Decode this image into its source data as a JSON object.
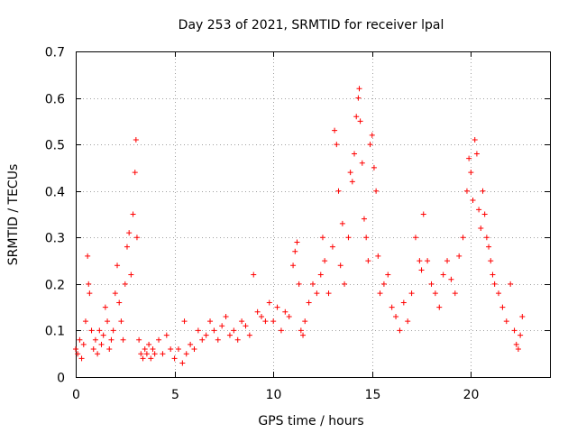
{
  "chart_data": {
    "type": "scatter",
    "title": "Day 253 of 2021, SRMTID for receiver lpal",
    "xlabel": "GPS time / hours",
    "ylabel": "SRMTID / TECUs",
    "xlim": [
      0,
      24
    ],
    "ylim": [
      0,
      0.7
    ],
    "xticks": [
      0,
      5,
      10,
      15,
      20
    ],
    "yticks": [
      0,
      0.1,
      0.2,
      0.3,
      0.4,
      0.5,
      0.6,
      0.7
    ],
    "xtick_labels": [
      "0",
      "5",
      "10",
      "15",
      "20"
    ],
    "ytick_labels": [
      "0",
      "0.1",
      "0.2",
      "0.3",
      "0.4",
      "0.5",
      "0.6",
      "0.7"
    ],
    "grid": true,
    "marker": "+",
    "color": "#ff0000",
    "series": [
      {
        "name": "SRMTID",
        "x": [
          0.0,
          0.1,
          0.2,
          0.3,
          0.4,
          0.5,
          0.6,
          0.65,
          0.7,
          0.8,
          0.9,
          1.0,
          1.1,
          1.2,
          1.3,
          1.4,
          1.5,
          1.6,
          1.7,
          1.8,
          1.9,
          2.0,
          2.1,
          2.2,
          2.3,
          2.4,
          2.5,
          2.6,
          2.7,
          2.8,
          2.9,
          3.0,
          3.05,
          3.1,
          3.2,
          3.3,
          3.4,
          3.5,
          3.6,
          3.7,
          3.8,
          3.9,
          4.0,
          4.2,
          4.4,
          4.6,
          4.8,
          5.0,
          5.2,
          5.4,
          5.5,
          5.6,
          5.8,
          6.0,
          6.2,
          6.4,
          6.6,
          6.8,
          7.0,
          7.2,
          7.4,
          7.6,
          7.8,
          8.0,
          8.2,
          8.4,
          8.6,
          8.8,
          9.0,
          9.2,
          9.4,
          9.6,
          9.8,
          10.0,
          10.2,
          10.4,
          10.6,
          10.8,
          11.0,
          11.1,
          11.2,
          11.3,
          11.4,
          11.5,
          11.6,
          11.8,
          12.0,
          12.2,
          12.4,
          12.5,
          12.6,
          12.8,
          13.0,
          13.1,
          13.2,
          13.3,
          13.4,
          13.5,
          13.6,
          13.8,
          13.9,
          14.0,
          14.1,
          14.2,
          14.3,
          14.35,
          14.4,
          14.5,
          14.6,
          14.7,
          14.8,
          14.9,
          15.0,
          15.1,
          15.2,
          15.3,
          15.4,
          15.6,
          15.8,
          16.0,
          16.2,
          16.4,
          16.6,
          16.8,
          17.0,
          17.2,
          17.4,
          17.5,
          17.6,
          17.8,
          18.0,
          18.2,
          18.4,
          18.6,
          18.8,
          19.0,
          19.2,
          19.4,
          19.6,
          19.8,
          19.9,
          20.0,
          20.1,
          20.2,
          20.3,
          20.4,
          20.5,
          20.6,
          20.7,
          20.8,
          20.9,
          21.0,
          21.1,
          21.2,
          21.4,
          21.6,
          21.8,
          22.0,
          22.2,
          22.3,
          22.4,
          22.5,
          22.6
        ],
        "y": [
          0.06,
          0.05,
          0.08,
          0.04,
          0.07,
          0.12,
          0.26,
          0.2,
          0.18,
          0.1,
          0.06,
          0.08,
          0.05,
          0.1,
          0.07,
          0.09,
          0.15,
          0.12,
          0.06,
          0.08,
          0.1,
          0.18,
          0.24,
          0.16,
          0.12,
          0.08,
          0.2,
          0.28,
          0.31,
          0.22,
          0.35,
          0.44,
          0.51,
          0.3,
          0.08,
          0.05,
          0.04,
          0.06,
          0.05,
          0.07,
          0.04,
          0.06,
          0.05,
          0.08,
          0.05,
          0.09,
          0.06,
          0.04,
          0.06,
          0.03,
          0.12,
          0.05,
          0.07,
          0.06,
          0.1,
          0.08,
          0.09,
          0.12,
          0.1,
          0.08,
          0.11,
          0.13,
          0.09,
          0.1,
          0.08,
          0.12,
          0.11,
          0.09,
          0.22,
          0.14,
          0.13,
          0.12,
          0.16,
          0.12,
          0.15,
          0.1,
          0.14,
          0.13,
          0.24,
          0.27,
          0.29,
          0.2,
          0.1,
          0.09,
          0.12,
          0.16,
          0.2,
          0.18,
          0.22,
          0.3,
          0.25,
          0.18,
          0.28,
          0.53,
          0.5,
          0.4,
          0.24,
          0.33,
          0.2,
          0.3,
          0.44,
          0.42,
          0.48,
          0.56,
          0.6,
          0.62,
          0.55,
          0.46,
          0.34,
          0.3,
          0.25,
          0.5,
          0.52,
          0.45,
          0.4,
          0.26,
          0.18,
          0.2,
          0.22,
          0.15,
          0.13,
          0.1,
          0.16,
          0.12,
          0.18,
          0.3,
          0.25,
          0.23,
          0.35,
          0.25,
          0.2,
          0.18,
          0.15,
          0.22,
          0.25,
          0.21,
          0.18,
          0.26,
          0.3,
          0.4,
          0.47,
          0.44,
          0.38,
          0.51,
          0.48,
          0.36,
          0.32,
          0.4,
          0.35,
          0.3,
          0.28,
          0.25,
          0.22,
          0.2,
          0.18,
          0.15,
          0.12,
          0.2,
          0.1,
          0.07,
          0.06,
          0.09,
          0.13
        ]
      }
    ]
  }
}
